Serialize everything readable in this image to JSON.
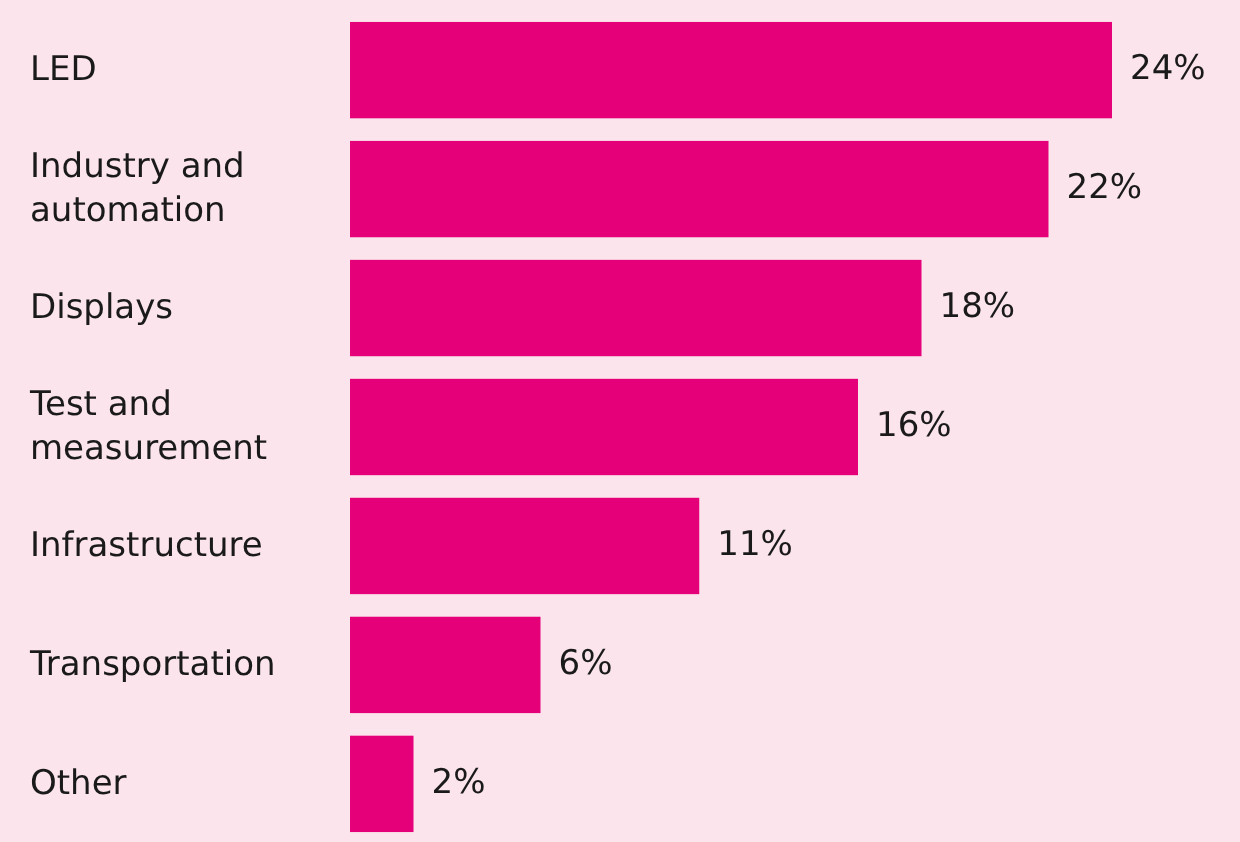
{
  "chart_data": {
    "type": "bar",
    "orientation": "horizontal",
    "categories": [
      "LED",
      "Industry and automation",
      "Displays",
      "Test and measurement",
      "Infrastructure",
      "Transportation",
      "Other"
    ],
    "values": [
      24,
      22,
      18,
      16,
      11,
      6,
      2
    ],
    "value_labels": [
      "24%",
      "22%",
      "18%",
      "16%",
      "11%",
      "6%",
      "2%"
    ],
    "color": "#e5007a"
  }
}
